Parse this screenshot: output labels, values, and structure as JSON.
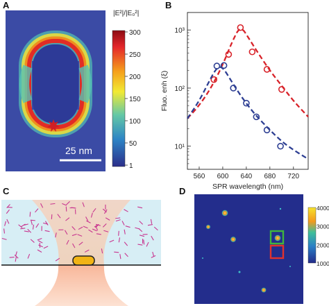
{
  "panels": {
    "a": {
      "label": "A",
      "colorbar_title": "|E²|/|E₀²|",
      "colorbar_ticks": [
        "300",
        "250",
        "200",
        "150",
        "100",
        "50",
        "1"
      ],
      "scale_bar": "25 nm"
    },
    "b": {
      "label": "B"
    },
    "c": {
      "label": "C"
    },
    "d": {
      "label": "D",
      "colorbar_ticks": [
        "4000",
        "3000",
        "2000",
        "1000"
      ]
    }
  },
  "chart_data": {
    "type": "scatter",
    "xlabel": "SPR wavelength (nm)",
    "ylabel": "Fluo. enh (ξ)",
    "x_ticks": [
      560,
      600,
      640,
      680,
      720
    ],
    "xlim": [
      540,
      745
    ],
    "yscale": "log",
    "ylim": [
      4,
      2000
    ],
    "y_ticks": [
      10,
      100,
      1000
    ],
    "y_tick_labels": [
      "10¹",
      "10²",
      "10³"
    ],
    "series": [
      {
        "color": "#d8232a",
        "points": [
          {
            "x": 585,
            "y": 140
          },
          {
            "x": 610,
            "y": 380
          },
          {
            "x": 630,
            "y": 1100
          },
          {
            "x": 650,
            "y": 420
          },
          {
            "x": 675,
            "y": 210
          },
          {
            "x": 700,
            "y": 95
          }
        ],
        "fit": [
          {
            "x": 540,
            "y": 30
          },
          {
            "x": 560,
            "y": 50
          },
          {
            "x": 580,
            "y": 100
          },
          {
            "x": 600,
            "y": 250
          },
          {
            "x": 615,
            "y": 600
          },
          {
            "x": 630,
            "y": 1200
          },
          {
            "x": 645,
            "y": 700
          },
          {
            "x": 660,
            "y": 400
          },
          {
            "x": 680,
            "y": 200
          },
          {
            "x": 700,
            "y": 110
          },
          {
            "x": 720,
            "y": 60
          },
          {
            "x": 745,
            "y": 32
          }
        ]
      },
      {
        "color": "#2e3f93",
        "points": [
          {
            "x": 590,
            "y": 240
          },
          {
            "x": 602,
            "y": 245
          },
          {
            "x": 618,
            "y": 100
          },
          {
            "x": 640,
            "y": 55
          },
          {
            "x": 657,
            "y": 32
          },
          {
            "x": 675,
            "y": 19
          },
          {
            "x": 698,
            "y": 10
          }
        ],
        "fit": [
          {
            "x": 540,
            "y": 30
          },
          {
            "x": 560,
            "y": 60
          },
          {
            "x": 575,
            "y": 120
          },
          {
            "x": 590,
            "y": 230
          },
          {
            "x": 600,
            "y": 230
          },
          {
            "x": 615,
            "y": 130
          },
          {
            "x": 630,
            "y": 75
          },
          {
            "x": 650,
            "y": 40
          },
          {
            "x": 670,
            "y": 24
          },
          {
            "x": 690,
            "y": 15
          },
          {
            "x": 710,
            "y": 10
          },
          {
            "x": 745,
            "y": 6
          }
        ]
      }
    ]
  }
}
